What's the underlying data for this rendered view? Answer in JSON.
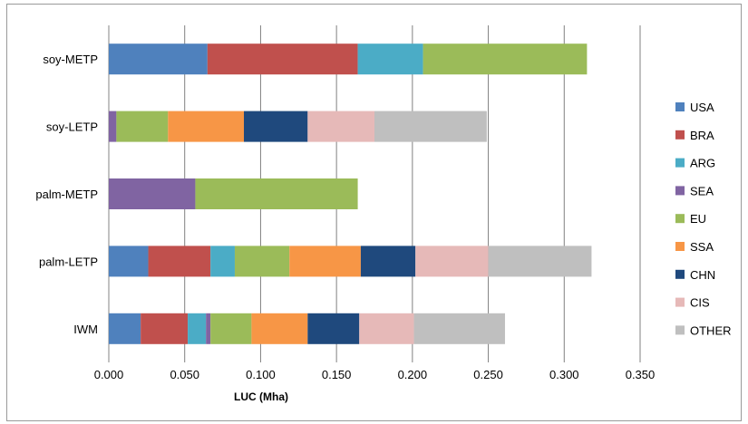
{
  "chart_data": {
    "type": "bar",
    "orientation": "horizontal",
    "stacked": true,
    "title": "",
    "xlabel": "LUC (Mha)",
    "ylabel": "",
    "xlim": [
      0,
      0.35
    ],
    "x_ticks": [
      "0.000",
      "0.050",
      "0.100",
      "0.150",
      "0.200",
      "0.250",
      "0.300",
      "0.350"
    ],
    "grid": "vertical",
    "legend_position": "right",
    "categories": [
      "soy-METP",
      "soy-LETP",
      "palm-METP",
      "palm-LETP",
      "IWM"
    ],
    "series": [
      {
        "name": "USA",
        "color": "#4F81BD",
        "values": [
          0.065,
          0.0,
          0.0,
          0.026,
          0.021
        ]
      },
      {
        "name": "BRA",
        "color": "#C0504D",
        "values": [
          0.099,
          0.0,
          0.0,
          0.041,
          0.031
        ]
      },
      {
        "name": "ARG",
        "color": "#4BACC6",
        "values": [
          0.043,
          0.0,
          0.0,
          0.016,
          0.012
        ]
      },
      {
        "name": "SEA",
        "color": "#8064A2",
        "values": [
          0.0,
          0.005,
          0.057,
          0.0,
          0.003
        ]
      },
      {
        "name": "EU",
        "color": "#9BBB59",
        "values": [
          0.108,
          0.034,
          0.107,
          0.036,
          0.027
        ]
      },
      {
        "name": "SSA",
        "color": "#F79646",
        "values": [
          0.0,
          0.05,
          0.0,
          0.047,
          0.037
        ]
      },
      {
        "name": "CHN",
        "color": "#1F497D",
        "values": [
          0.0,
          0.042,
          0.0,
          0.036,
          0.034
        ]
      },
      {
        "name": "CIS",
        "color": "#E6B9B8",
        "values": [
          0.0,
          0.044,
          0.0,
          0.048,
          0.036
        ]
      },
      {
        "name": "OTHER",
        "color": "#BFBFBF",
        "values": [
          0.0,
          0.074,
          0.0,
          0.068,
          0.06
        ]
      }
    ]
  }
}
